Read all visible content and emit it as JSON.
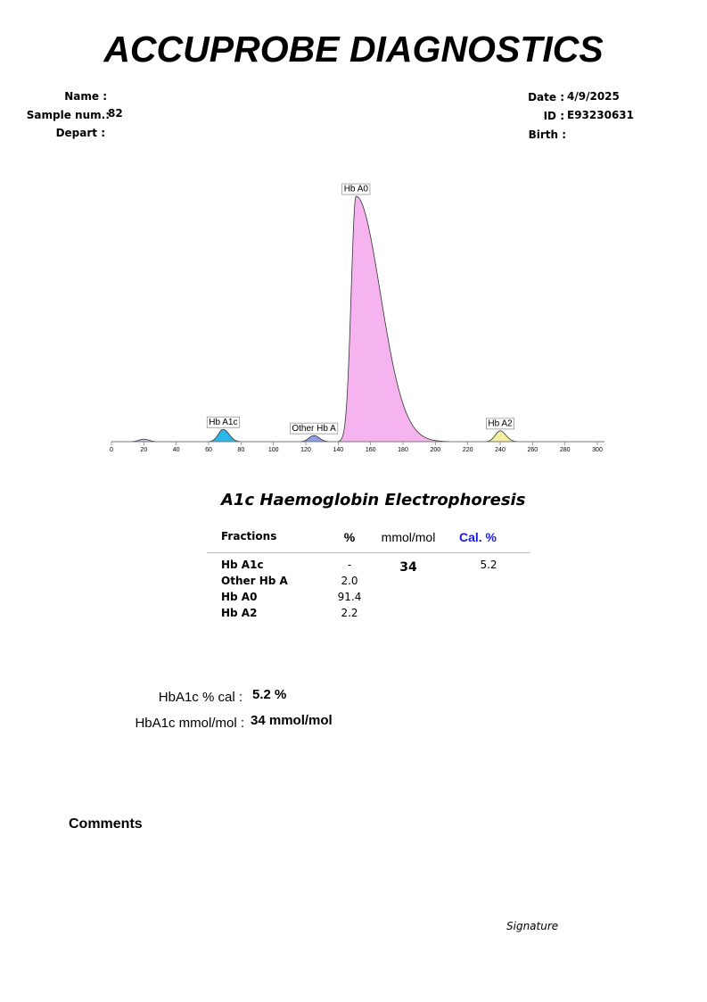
{
  "header": {
    "title": "ACCUPROBE DIAGNOSTICS",
    "name_label": "Name :",
    "sample_label": "Sample num.:",
    "sample_value": "82",
    "depart_label": "Depart :",
    "date_label": "Date :",
    "date_value": "4/9/2025",
    "id_label": "ID :",
    "id_value": "E93230631",
    "birth_label": "Birth :"
  },
  "chart_data": {
    "type": "electropherogram",
    "xlim": [
      0,
      300
    ],
    "ylim": [
      0,
      100
    ],
    "xticks": [
      0,
      20,
      40,
      60,
      80,
      100,
      120,
      140,
      160,
      180,
      200,
      220,
      240,
      260,
      280,
      300
    ],
    "peaks": [
      {
        "name": null,
        "x": 20,
        "height": 1,
        "color": "#c9c9f0"
      },
      {
        "name": "Hb A1c",
        "x": 69,
        "height": 5,
        "color": "#2bb7e8"
      },
      {
        "name": "Other Hb A",
        "x": 125,
        "height": 2.5,
        "color": "#8c9ce8"
      },
      {
        "name": "Hb A0",
        "x": 151,
        "height": 100,
        "color": "#f5b4ef"
      },
      {
        "name": "Hb A2",
        "x": 240,
        "height": 4.4,
        "color": "#f3eea0"
      }
    ]
  },
  "section_title": "A1c Haemoglobin Electrophoresis",
  "table": {
    "headers": [
      "Fractions",
      "%",
      "mmol/mol",
      "Cal. %"
    ],
    "rows": [
      [
        "Hb A1c",
        "-",
        "34",
        "5.2"
      ],
      [
        "Other Hb A",
        "2.0"
      ],
      [
        "Hb A0",
        "91.4"
      ],
      [
        "Hb A2",
        "2.2"
      ]
    ]
  },
  "summary": [
    {
      "label": "HbA1c % cal :",
      "value": "5.2 %"
    },
    {
      "label": "HbA1c mmol/mol :",
      "value": "34 mmol/mol"
    }
  ],
  "comments_label": "Comments",
  "signature_label": "Signature"
}
